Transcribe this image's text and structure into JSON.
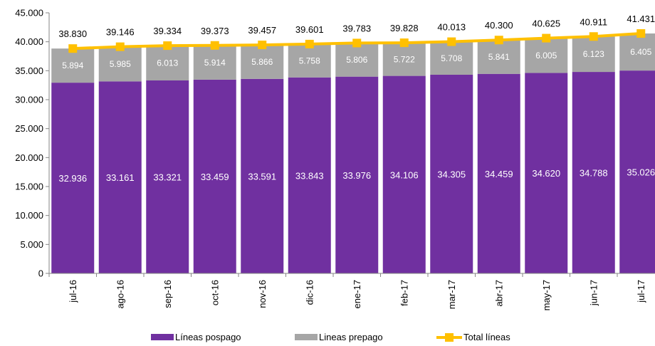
{
  "chart_data": {
    "type": "bar",
    "stacked": true,
    "categories": [
      "jul-16",
      "ago-16",
      "sep-16",
      "oct-16",
      "nov-16",
      "dic-16",
      "ene-17",
      "feb-17",
      "mar-17",
      "abr-17",
      "may-17",
      "jun-17",
      "jul-17"
    ],
    "series": [
      {
        "name": "Líneas pospago",
        "type": "bar",
        "color": "#7030A0",
        "values": [
          32936,
          33161,
          33321,
          33459,
          33591,
          33843,
          33976,
          34106,
          34305,
          34459,
          34620,
          34788,
          35026
        ],
        "labels": [
          "32.936",
          "33.161",
          "33.321",
          "33.459",
          "33.591",
          "33.843",
          "33.976",
          "34.106",
          "34.305",
          "34.459",
          "34.620",
          "34.788",
          "35.026"
        ]
      },
      {
        "name": "Lineas prepago",
        "type": "bar",
        "color": "#A6A6A6",
        "values": [
          5894,
          5985,
          6013,
          5914,
          5866,
          5758,
          5806,
          5722,
          5708,
          5841,
          6005,
          6123,
          6405
        ],
        "labels": [
          "5.894",
          "5.985",
          "6.013",
          "5.914",
          "5.866",
          "5.758",
          "5.806",
          "5.722",
          "5.708",
          "5.841",
          "6.005",
          "6.123",
          "6.405"
        ]
      },
      {
        "name": "Total líneas",
        "type": "line",
        "color": "#FFC000",
        "values": [
          38830,
          39146,
          39334,
          39373,
          39457,
          39601,
          39783,
          39828,
          40013,
          40300,
          40625,
          40911,
          41431
        ],
        "labels": [
          "38.830",
          "39.146",
          "39.334",
          "39.373",
          "39.457",
          "39.601",
          "39.783",
          "39.828",
          "40.013",
          "40.300",
          "40.625",
          "40.911",
          "41.431"
        ]
      }
    ],
    "yticks": [
      0,
      5000,
      10000,
      15000,
      20000,
      25000,
      30000,
      35000,
      40000,
      45000
    ],
    "ytick_labels": [
      "0",
      "5.000",
      "10.000",
      "15.000",
      "20.000",
      "25.000",
      "30.000",
      "35.000",
      "40.000",
      "45.000"
    ],
    "ylim": [
      0,
      45000
    ],
    "title": "",
    "xlabel": "",
    "ylabel": "",
    "grid": false,
    "legend_position": "bottom"
  }
}
